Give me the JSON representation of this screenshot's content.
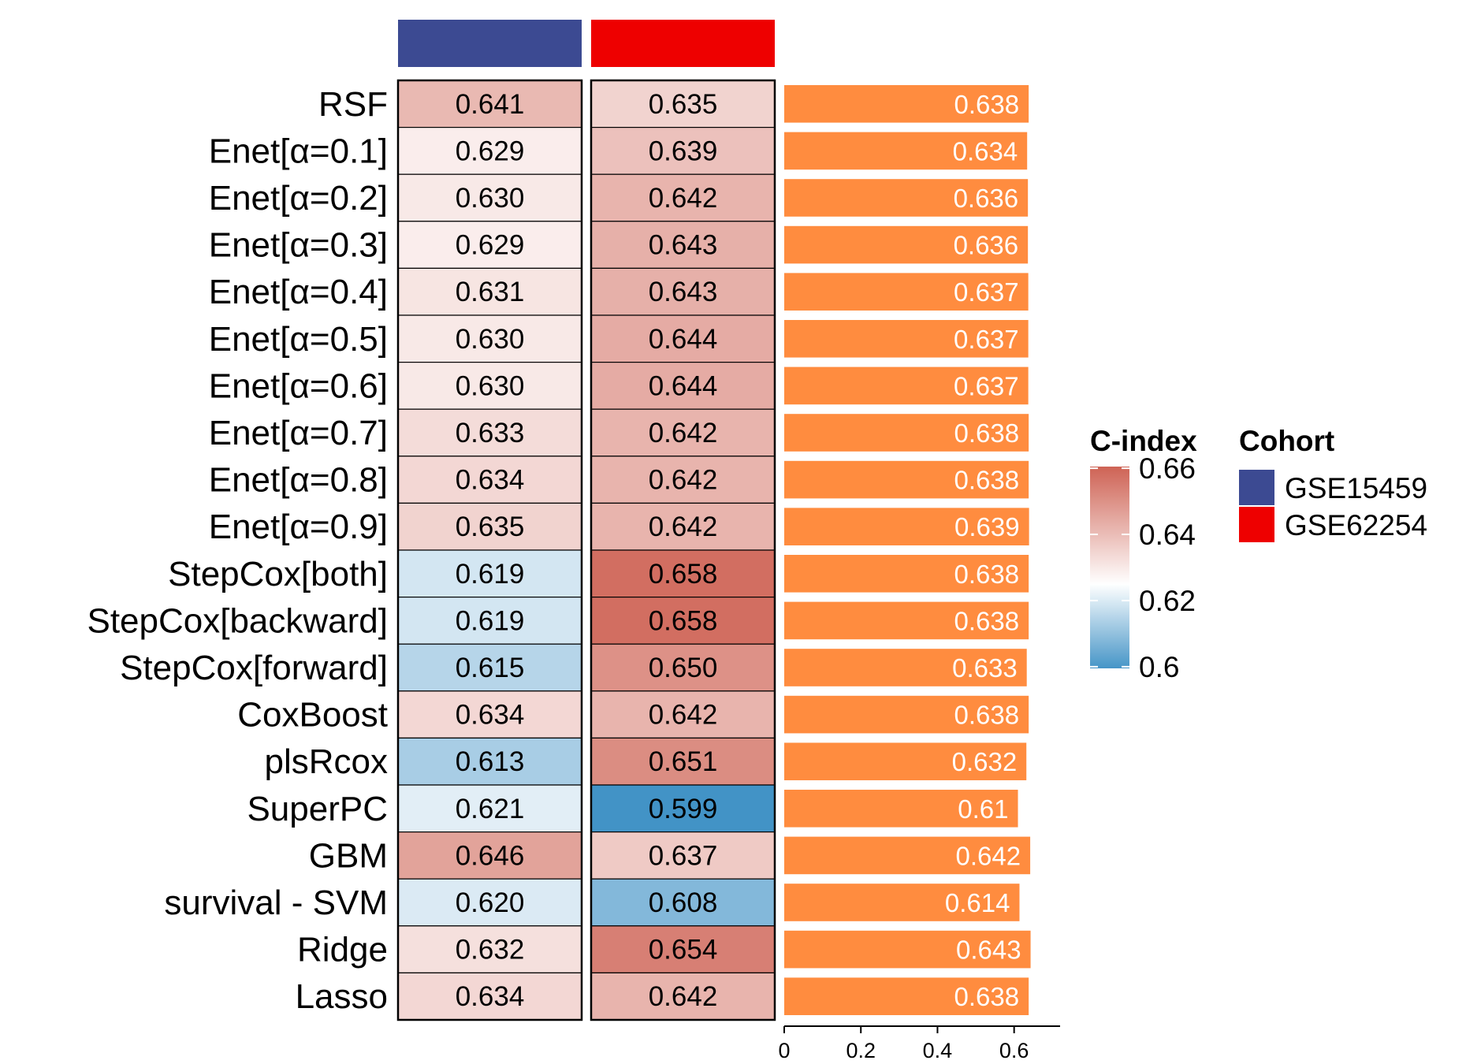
{
  "chart_data": {
    "type": "heatmap",
    "models": [
      "RSF",
      "Enet[α=0.1]",
      "Enet[α=0.2]",
      "Enet[α=0.3]",
      "Enet[α=0.4]",
      "Enet[α=0.5]",
      "Enet[α=0.6]",
      "Enet[α=0.7]",
      "Enet[α=0.8]",
      "Enet[α=0.9]",
      "StepCox[both]",
      "StepCox[backward]",
      "StepCox[forward]",
      "CoxBoost",
      "plsRcox",
      "SuperPC",
      "GBM",
      "survival - SVM",
      "Ridge",
      "Lasso"
    ],
    "cohorts": [
      {
        "name": "GSE15459",
        "color": "#3C4A92",
        "values": [
          "0.641",
          "0.629",
          "0.630",
          "0.629",
          "0.631",
          "0.630",
          "0.630",
          "0.633",
          "0.634",
          "0.635",
          "0.619",
          "0.619",
          "0.615",
          "0.634",
          "0.613",
          "0.621",
          "0.646",
          "0.620",
          "0.632",
          "0.634"
        ]
      },
      {
        "name": "GSE62254",
        "color": "#EE0000",
        "values": [
          "0.635",
          "0.639",
          "0.642",
          "0.643",
          "0.643",
          "0.644",
          "0.644",
          "0.642",
          "0.642",
          "0.642",
          "0.658",
          "0.658",
          "0.650",
          "0.642",
          "0.651",
          "0.599",
          "0.637",
          "0.608",
          "0.654",
          "0.642"
        ]
      }
    ],
    "mean_bar": {
      "color": "#FF8C3F",
      "labels": [
        "0.638",
        "0.634",
        "0.636",
        "0.636",
        "0.637",
        "0.637",
        "0.637",
        "0.638",
        "0.638",
        "0.639",
        "0.638",
        "0.638",
        "0.633",
        "0.638",
        "0.632",
        "0.61",
        "0.642",
        "0.614",
        "0.643",
        "0.638"
      ],
      "axis_ticks": [
        "0",
        "0.2",
        "0.4",
        "0.6"
      ],
      "xlim": [
        0,
        0.72
      ]
    },
    "color_scale": {
      "title": "C-index",
      "ticks": [
        "0.66",
        "0.64",
        "0.62",
        "0.6"
      ],
      "low": 0.599,
      "mid": 0.625,
      "high": 0.665,
      "low_color": "#4293C6",
      "mid_color": "#FFFFFF",
      "high_color": "#C84F3F"
    },
    "legend": {
      "title": "Cohort"
    }
  }
}
